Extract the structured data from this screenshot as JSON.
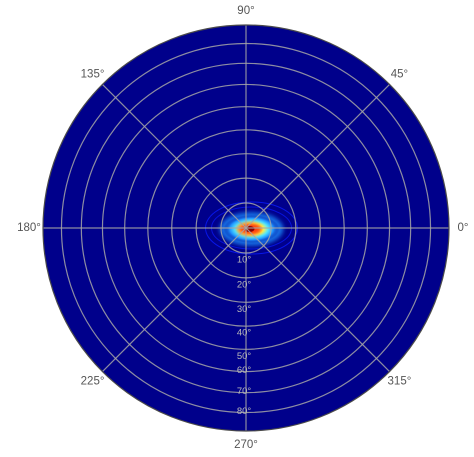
{
  "chart_data": {
    "type": "heatmap",
    "projection": "polar",
    "title": "",
    "angular_ticks": [
      {
        "angle": 0,
        "label": "0°"
      },
      {
        "angle": 45,
        "label": "45°"
      },
      {
        "angle": 90,
        "label": "90°"
      },
      {
        "angle": 135,
        "label": "135°"
      },
      {
        "angle": 180,
        "label": "180°"
      },
      {
        "angle": 225,
        "label": "225°"
      },
      {
        "angle": 270,
        "label": "270°"
      },
      {
        "angle": 315,
        "label": "315°"
      }
    ],
    "radial_ticks": [
      {
        "value": 10,
        "label": "10°"
      },
      {
        "value": 20,
        "label": "20°"
      },
      {
        "value": 30,
        "label": "30°"
      },
      {
        "value": 40,
        "label": "40°"
      },
      {
        "value": 50,
        "label": "50°"
      },
      {
        "value": 60,
        "label": "60°"
      },
      {
        "value": 70,
        "label": "70°"
      },
      {
        "value": 80,
        "label": "80°"
      }
    ],
    "radial_scale": "equal-area (zenith angle)",
    "radial_range": [
      0,
      90
    ],
    "grid": true,
    "colormap": "jet",
    "background_color": "#00008b",
    "peak": {
      "angle": 0,
      "radius": 3
    },
    "hotspot_colors": [
      "#0a1bff",
      "#1e90ff",
      "#4fe3ff",
      "#ffff50",
      "#ff9a1a",
      "#ff3a10",
      "#8b0000"
    ]
  }
}
